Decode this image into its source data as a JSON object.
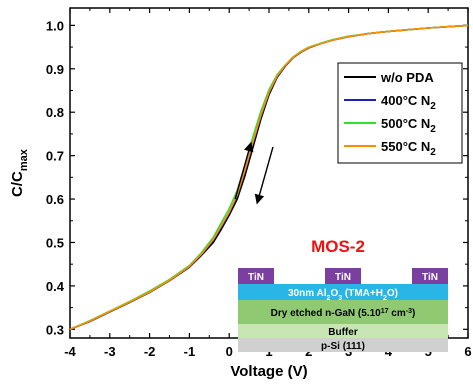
{
  "chart_data": {
    "type": "line",
    "xlabel": "Voltage (V)",
    "ylabel": {
      "main": "C/C",
      "sub": "max"
    },
    "xlim": [
      -4,
      6
    ],
    "ylim": [
      0.28,
      1.04
    ],
    "x_ticks": [
      -4,
      -3,
      -2,
      -1,
      0,
      1,
      2,
      3,
      4,
      5,
      6
    ],
    "x_tick_labels": [
      "-4",
      "-3",
      "-2",
      "-1",
      "0",
      "1",
      "2",
      "3",
      "4",
      "5",
      "6"
    ],
    "y_ticks": [
      0.3,
      0.4,
      0.5,
      0.6,
      0.7,
      0.8,
      0.9,
      1.0
    ],
    "y_tick_labels": [
      "0.3",
      "0.4",
      "0.5",
      "0.6",
      "0.7",
      "0.8",
      "0.9",
      "1.0"
    ],
    "grid": false,
    "legend_position": "top-right",
    "x": [
      -4.0,
      -3.5,
      -3.0,
      -2.5,
      -2.0,
      -1.5,
      -1.0,
      -0.7,
      -0.4,
      -0.2,
      0.0,
      0.2,
      0.4,
      0.6,
      0.8,
      1.0,
      1.2,
      1.4,
      1.6,
      1.8,
      2.0,
      2.3,
      2.6,
      3.0,
      3.5,
      4.0,
      4.5,
      5.0,
      5.5,
      6.0
    ],
    "series": [
      {
        "name": "w/o PDA",
        "color": "#000000",
        "values": [
          0.3,
          0.318,
          0.34,
          0.362,
          0.385,
          0.412,
          0.443,
          0.47,
          0.5,
          0.53,
          0.563,
          0.6,
          0.655,
          0.72,
          0.785,
          0.84,
          0.88,
          0.905,
          0.925,
          0.938,
          0.948,
          0.958,
          0.966,
          0.974,
          0.981,
          0.986,
          0.99,
          0.994,
          0.997,
          1.0
        ]
      },
      {
        "name": "400°C N",
        "sub": "2",
        "color": "#1f1fbf",
        "values": [
          0.3,
          0.319,
          0.341,
          0.363,
          0.386,
          0.413,
          0.444,
          0.472,
          0.505,
          0.535,
          0.568,
          0.608,
          0.665,
          0.73,
          0.792,
          0.845,
          0.882,
          0.906,
          0.926,
          0.939,
          0.949,
          0.958,
          0.966,
          0.974,
          0.981,
          0.986,
          0.99,
          0.994,
          0.997,
          1.0
        ]
      },
      {
        "name": "500°C N",
        "sub": "2",
        "color": "#33dd33",
        "values": [
          0.3,
          0.32,
          0.342,
          0.364,
          0.388,
          0.415,
          0.447,
          0.476,
          0.512,
          0.545,
          0.578,
          0.62,
          0.68,
          0.745,
          0.803,
          0.852,
          0.886,
          0.908,
          0.927,
          0.94,
          0.95,
          0.959,
          0.967,
          0.975,
          0.981,
          0.986,
          0.99,
          0.994,
          0.997,
          1.0
        ]
      },
      {
        "name": "550°C N",
        "sub": "2",
        "color": "#ff8c00",
        "values": [
          0.3,
          0.319,
          0.341,
          0.363,
          0.386,
          0.413,
          0.445,
          0.473,
          0.507,
          0.538,
          0.57,
          0.61,
          0.668,
          0.733,
          0.794,
          0.846,
          0.883,
          0.907,
          0.926,
          0.939,
          0.949,
          0.958,
          0.966,
          0.974,
          0.981,
          0.986,
          0.99,
          0.994,
          0.997,
          1.0
        ]
      }
    ],
    "arrows": [
      {
        "direction": "up",
        "from": [
          0.15,
          0.6
        ],
        "to": [
          0.55,
          0.73
        ]
      },
      {
        "direction": "down",
        "from": [
          1.1,
          0.72
        ],
        "to": [
          0.7,
          0.59
        ]
      }
    ]
  },
  "inset": {
    "title": "MOS-2",
    "title_color": "#ee1111",
    "electrodes": [
      "TiN",
      "TiN",
      "TiN"
    ],
    "layers": [
      {
        "parts": [
          {
            "t": "30nm Al"
          },
          {
            "t": "2",
            "sub": true
          },
          {
            "t": "O"
          },
          {
            "t": "3",
            "sub": true
          },
          {
            "t": " (TMA+H"
          },
          {
            "t": "2",
            "sub": true
          },
          {
            "t": "O)"
          }
        ],
        "color": "#29b6e6",
        "text_color": "#ffffff"
      },
      {
        "parts": [
          {
            "t": "Dry etched n-GaN (5.10"
          },
          {
            "t": "17",
            "sup": true
          },
          {
            "t": " cm"
          },
          {
            "t": "-3",
            "sup": true
          },
          {
            "t": ")"
          }
        ],
        "color": "#8fca72",
        "text_color": "#000000"
      },
      {
        "parts": [
          {
            "t": "Buffer"
          }
        ],
        "color": "#c8e6b4",
        "text_color": "#000000"
      },
      {
        "parts": [
          {
            "t": "p-Si (111)"
          }
        ],
        "color": "#d0d0d0",
        "text_color": "#000000"
      }
    ],
    "electrode_color": "#7b3fa0"
  }
}
